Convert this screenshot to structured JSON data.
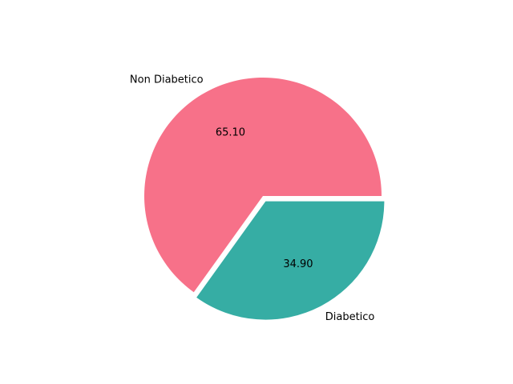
{
  "chart_data": {
    "type": "pie",
    "slices": [
      {
        "label": "Non Diabetico",
        "value": 65.1,
        "pct_label": "65.10",
        "color": "#f77189",
        "explode": 0
      },
      {
        "label": "Diabetico",
        "value": 34.9,
        "pct_label": "34.90",
        "color": "#36ada4",
        "explode": 0.05
      }
    ],
    "start_angle_deg": 0,
    "direction": "counterclockwise",
    "legend": "none",
    "title": ""
  }
}
